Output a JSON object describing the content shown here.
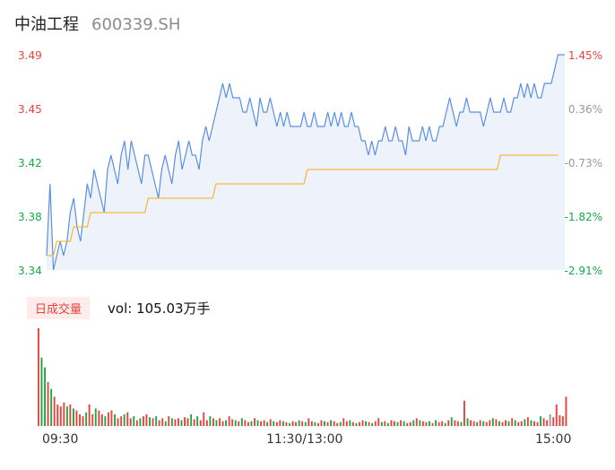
{
  "stock": {
    "name": "中油工程",
    "code": "600339.SH"
  },
  "colors": {
    "price_line": "#5b8fe0",
    "avg_line": "#f5b942",
    "up": "#e8433a",
    "down": "#18a84a",
    "neutral": "#999999",
    "area": "#eef3fb"
  },
  "chart_data": [
    {
      "type": "line",
      "ylim": [
        3.34,
        3.49
      ],
      "prev_close": 3.44,
      "price_ticks": [
        "3.49",
        "3.45",
        "3.42",
        "3.38",
        "3.34"
      ],
      "pct_ticks": [
        "1.45%",
        "0.36%",
        "-0.73%",
        "-1.82%",
        "-2.91%"
      ],
      "x_ticks": [
        "09:30",
        "11:30/13:00",
        "15:00"
      ],
      "series": [
        {
          "role": "price",
          "values": [
            3.35,
            3.4,
            3.34,
            3.35,
            3.36,
            3.35,
            3.36,
            3.38,
            3.39,
            3.37,
            3.36,
            3.38,
            3.4,
            3.39,
            3.41,
            3.4,
            3.39,
            3.38,
            3.41,
            3.42,
            3.41,
            3.4,
            3.42,
            3.43,
            3.41,
            3.43,
            3.42,
            3.41,
            3.4,
            3.42,
            3.42,
            3.41,
            3.4,
            3.39,
            3.41,
            3.42,
            3.41,
            3.4,
            3.42,
            3.43,
            3.41,
            3.42,
            3.43,
            3.42,
            3.42,
            3.41,
            3.43,
            3.44,
            3.43,
            3.44,
            3.45,
            3.46,
            3.47,
            3.46,
            3.47,
            3.46,
            3.46,
            3.46,
            3.45,
            3.45,
            3.46,
            3.45,
            3.44,
            3.46,
            3.45,
            3.45,
            3.46,
            3.45,
            3.44,
            3.45,
            3.44,
            3.45,
            3.44,
            3.44,
            3.44,
            3.44,
            3.45,
            3.44,
            3.44,
            3.45,
            3.44,
            3.44,
            3.44,
            3.45,
            3.44,
            3.45,
            3.44,
            3.45,
            3.44,
            3.44,
            3.45,
            3.44,
            3.44,
            3.43,
            3.43,
            3.42,
            3.43,
            3.42,
            3.43,
            3.43,
            3.44,
            3.43,
            3.43,
            3.44,
            3.43,
            3.43,
            3.42,
            3.44,
            3.43,
            3.43,
            3.43,
            3.44,
            3.43,
            3.44,
            3.43,
            3.43,
            3.44,
            3.44,
            3.45,
            3.46,
            3.45,
            3.44,
            3.45,
            3.45,
            3.46,
            3.45,
            3.45,
            3.45,
            3.45,
            3.44,
            3.45,
            3.46,
            3.45,
            3.45,
            3.45,
            3.46,
            3.45,
            3.45,
            3.46,
            3.46,
            3.47,
            3.46,
            3.47,
            3.46,
            3.47,
            3.46,
            3.46,
            3.47,
            3.47,
            3.47,
            3.48,
            3.49,
            3.49,
            3.49
          ],
          "avg_values": [
            3.35,
            3.35,
            3.35,
            3.36,
            3.36,
            3.36,
            3.36,
            3.36,
            3.37,
            3.37,
            3.37,
            3.37,
            3.37,
            3.38,
            3.38,
            3.38,
            3.38,
            3.38,
            3.38,
            3.38,
            3.38,
            3.38,
            3.38,
            3.38,
            3.38,
            3.38,
            3.38,
            3.38,
            3.38,
            3.38,
            3.39,
            3.39,
            3.39,
            3.39,
            3.39,
            3.39,
            3.39,
            3.39,
            3.39,
            3.39,
            3.39,
            3.39,
            3.39,
            3.39,
            3.39,
            3.39,
            3.39,
            3.39,
            3.39,
            3.39,
            3.4,
            3.4,
            3.4,
            3.4,
            3.4,
            3.4,
            3.4,
            3.4,
            3.4,
            3.4,
            3.4,
            3.4,
            3.4,
            3.4,
            3.4,
            3.4,
            3.4,
            3.4,
            3.4,
            3.4,
            3.4,
            3.4,
            3.4,
            3.4,
            3.4,
            3.4,
            3.4,
            3.41,
            3.41,
            3.41,
            3.41,
            3.41,
            3.41,
            3.41,
            3.41,
            3.41,
            3.41,
            3.41,
            3.41,
            3.41,
            3.41,
            3.41,
            3.41,
            3.41,
            3.41,
            3.41,
            3.41,
            3.41,
            3.41,
            3.41,
            3.41,
            3.41,
            3.41,
            3.41,
            3.41,
            3.41,
            3.41,
            3.41,
            3.41,
            3.41,
            3.41,
            3.41,
            3.41,
            3.41,
            3.41,
            3.41,
            3.41,
            3.41,
            3.41,
            3.41,
            3.41,
            3.41,
            3.41,
            3.41,
            3.41,
            3.41,
            3.41,
            3.41,
            3.41,
            3.41,
            3.41,
            3.41,
            3.41,
            3.41,
            3.42,
            3.42,
            3.42,
            3.42,
            3.42,
            3.42,
            3.42,
            3.42,
            3.42,
            3.42,
            3.42,
            3.42,
            3.42,
            3.42,
            3.42,
            3.42,
            3.42,
            3.42
          ]
        }
      ]
    },
    {
      "type": "bar",
      "label": "日成交量",
      "summary": "vol: 105.03万手",
      "values": [
        100,
        70,
        60,
        45,
        38,
        30,
        22,
        20,
        24,
        20,
        22,
        18,
        16,
        12,
        10,
        14,
        22,
        12,
        18,
        16,
        12,
        10,
        14,
        16,
        12,
        8,
        10,
        12,
        14,
        8,
        10,
        6,
        8,
        10,
        12,
        9,
        8,
        10,
        6,
        8,
        5,
        10,
        8,
        7,
        8,
        6,
        9,
        8,
        12,
        7,
        10,
        6,
        14,
        6,
        10,
        8,
        6,
        8,
        5,
        6,
        10,
        7,
        6,
        5,
        8,
        6,
        4,
        5,
        8,
        6,
        5,
        6,
        4,
        7,
        5,
        4,
        6,
        5,
        4,
        3,
        5,
        4,
        6,
        5,
        4,
        8,
        5,
        4,
        3,
        6,
        5,
        4,
        6,
        5,
        3,
        4,
        8,
        5,
        6,
        4,
        3,
        4,
        6,
        5,
        4,
        3,
        5,
        8,
        4,
        5,
        3,
        6,
        5,
        4,
        6,
        5,
        3,
        4,
        6,
        8,
        6,
        5,
        4,
        5,
        3,
        6,
        4,
        5,
        3,
        6,
        9,
        6,
        5,
        4,
        26,
        8,
        6,
        5,
        4,
        6,
        5,
        4,
        6,
        8,
        7,
        5,
        4,
        6,
        5,
        8,
        6,
        4,
        5,
        7,
        9,
        6,
        5,
        4,
        10,
        8,
        6,
        12,
        9,
        22,
        11,
        10,
        30
      ],
      "colors": [
        "up",
        "down",
        "down",
        "up",
        "down",
        "up",
        "up",
        "up",
        "up",
        "down",
        "up",
        "down",
        "up",
        "up",
        "up",
        "down",
        "up",
        "up",
        "down",
        "up",
        "up",
        "down",
        "up",
        "up",
        "down",
        "up",
        "up",
        "down",
        "up",
        "up",
        "down",
        "up",
        "down",
        "up",
        "up",
        "down",
        "up",
        "down",
        "up",
        "up",
        "down",
        "up",
        "down",
        "up",
        "up",
        "down",
        "up",
        "up",
        "down",
        "up",
        "down",
        "up",
        "up",
        "up",
        "down",
        "up",
        "down",
        "up",
        "up",
        "down",
        "up",
        "up",
        "down",
        "up",
        "down",
        "up",
        "up",
        "down",
        "up",
        "down",
        "up",
        "up",
        "down",
        "up",
        "down",
        "up",
        "up",
        "down",
        "up",
        "down",
        "up",
        "up",
        "down",
        "up",
        "down",
        "up",
        "up",
        "down",
        "up",
        "up",
        "down",
        "up",
        "down",
        "up",
        "up",
        "down",
        "up",
        "up",
        "down",
        "up",
        "down",
        "up",
        "up",
        "down",
        "up",
        "down",
        "up",
        "up",
        "down",
        "up",
        "down",
        "up",
        "up",
        "down",
        "up",
        "down",
        "up",
        "up",
        "down",
        "up",
        "down",
        "up",
        "up",
        "down",
        "up",
        "down",
        "up",
        "up",
        "down",
        "up",
        "down",
        "up",
        "up",
        "down",
        "up",
        "down",
        "up",
        "up",
        "down",
        "up",
        "down",
        "up",
        "up",
        "down",
        "up",
        "down",
        "up",
        "up",
        "down",
        "up",
        "down",
        "up",
        "up",
        "down",
        "up",
        "down",
        "up",
        "up",
        "down",
        "up",
        "up",
        "neutral"
      ]
    }
  ]
}
